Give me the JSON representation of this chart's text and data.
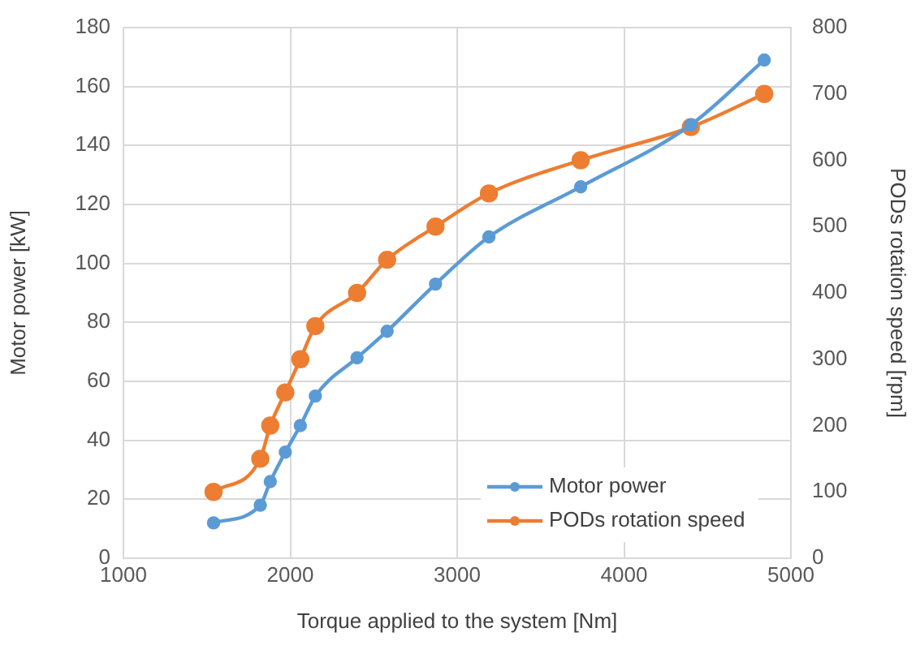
{
  "chart_data": {
    "type": "line",
    "xlabel": "Torque applied to the system [Nm]",
    "ylabel": "Motor power [kW]",
    "y2label": "PODs rotation speed [rpm]",
    "x": [
      1540,
      1820,
      1880,
      1970,
      2060,
      2150,
      2400,
      2580,
      2870,
      3190,
      3740,
      4400,
      4840
    ],
    "series": [
      {
        "name": "Motor power",
        "color": "#5b9bd5",
        "values": [
          12,
          18,
          26,
          36,
          45,
          55,
          68,
          77,
          93,
          109,
          126,
          147,
          169
        ]
      },
      {
        "name": "PODs rotation speed",
        "color": "#ed7d31",
        "axis": "y2",
        "values": [
          100,
          150,
          200,
          250,
          300,
          350,
          400,
          450,
          500,
          550,
          600,
          650,
          700
        ]
      }
    ],
    "xlim": [
      1000,
      5000
    ],
    "xticks": [
      1000,
      2000,
      3000,
      4000,
      5000
    ],
    "ylim": [
      0,
      180
    ],
    "yticks": [
      0,
      20,
      40,
      60,
      80,
      100,
      120,
      140,
      160,
      180
    ],
    "y2lim": [
      0,
      800
    ],
    "y2ticks": [
      0,
      100,
      200,
      300,
      400,
      500,
      600,
      700,
      800
    ],
    "grid": true,
    "legend": "bottom right",
    "marker": "circle",
    "line_style": "solid"
  }
}
